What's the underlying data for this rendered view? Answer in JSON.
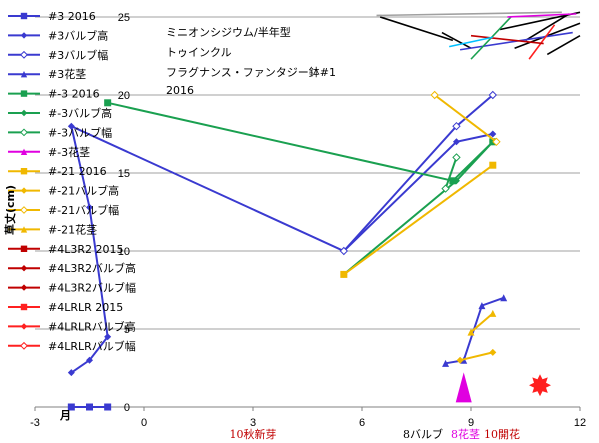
{
  "chart_data": {
    "type": "scatter",
    "title": "ミニオンシジウム/半年型",
    "subtitle_lines": [
      "トゥインクル",
      "フラグナンス・ファンタジー鉢#1",
      "2016"
    ],
    "xlabel": "月",
    "ylabel": "草丈(cm)",
    "xlim": [
      -3,
      12
    ],
    "ylim": [
      0,
      25
    ],
    "xticks": [
      -3,
      0,
      3,
      6,
      9,
      12
    ],
    "xtick_labels": [
      "-3",
      "0",
      "3",
      "6",
      "9",
      "12"
    ],
    "yticks": [
      0,
      5,
      10,
      15,
      20,
      25
    ],
    "ytick_labels": [
      "0",
      "5",
      "10",
      "15",
      "20",
      "25"
    ],
    "grid": "horizontal",
    "legend_position": "left",
    "annotations": [
      {
        "text": "10秋新芽",
        "x": 3,
        "color": "#c00000"
      },
      {
        "text": "8バルブ",
        "x": 8.6,
        "color": "#000000"
      },
      {
        "text": "8花茎",
        "x": 9.0,
        "color": "#e000e0"
      },
      {
        "text": "10開花",
        "x": 9.6,
        "color": "#c00000"
      }
    ],
    "series": [
      {
        "name": "#3 2016",
        "color": "#3a3ad0",
        "marker": "square",
        "x": [
          -2,
          -1.5,
          -1
        ],
        "y": [
          0,
          0,
          0
        ]
      },
      {
        "name": "#3バルブ高",
        "color": "#3a3ad0",
        "marker": "diamond",
        "x": [
          -2,
          -1.5,
          -1,
          -1.5,
          -2,
          5.5,
          8.6,
          9.6
        ],
        "y": [
          2.2,
          3.0,
          4.5,
          12.8,
          18.0,
          10.0,
          17.0,
          17.5
        ]
      },
      {
        "name": "#3バルブ幅",
        "color": "#3a3ad0",
        "marker": "diamond-open",
        "x": [
          5.5,
          8.6,
          9.6
        ],
        "y": [
          10.0,
          18.0,
          20.0
        ]
      },
      {
        "name": "#3花茎",
        "color": "#3a3ad0",
        "marker": "triangle",
        "x": [
          8.3,
          8.8,
          9.3,
          9.9
        ],
        "y": [
          2.8,
          3.0,
          6.5,
          7.0
        ]
      },
      {
        "name": "#-3 2016",
        "color": "#1aa050",
        "marker": "square",
        "x": [
          -1,
          8.5,
          9.6
        ],
        "y": [
          19.5,
          14.5,
          17.0
        ]
      },
      {
        "name": "#-3バルブ高",
        "color": "#1aa050",
        "marker": "diamond",
        "x": [
          5.5,
          8.6,
          9.6
        ],
        "y": [
          8.5,
          14.5,
          17.0
        ]
      },
      {
        "name": "#-3バルブ幅",
        "color": "#1aa050",
        "marker": "diamond-open",
        "x": [
          8.3,
          8.6
        ],
        "y": [
          14.0,
          16.0
        ]
      },
      {
        "name": "#-3花茎",
        "color": "#e000e0",
        "marker": "triangle",
        "x": [
          8.8
        ],
        "y": [
          0.6
        ]
      },
      {
        "name": "#-21 2016",
        "color": "#f0b800",
        "marker": "square",
        "x": [
          5.5,
          9.6
        ],
        "y": [
          8.5,
          15.5
        ]
      },
      {
        "name": "#-21バルブ高",
        "color": "#f0b800",
        "marker": "diamond",
        "x": [
          8.7,
          9.6
        ],
        "y": [
          3.0,
          3.5
        ]
      },
      {
        "name": "#-21バルブ幅",
        "color": "#f0b800",
        "marker": "diamond-open",
        "x": [
          8.0,
          9.7
        ],
        "y": [
          20.0,
          17.0
        ]
      },
      {
        "name": "#-21花茎",
        "color": "#f0b800",
        "marker": "triangle",
        "x": [
          9.0,
          9.6
        ],
        "y": [
          4.8,
          6.0
        ]
      },
      {
        "name": "#4L3R2 2015",
        "color": "#c00000",
        "marker": "square",
        "x": [],
        "y": []
      },
      {
        "name": "#4L3R2バルブ高",
        "color": "#c00000",
        "marker": "diamond",
        "x": [],
        "y": []
      },
      {
        "name": "#4L3R2バルブ幅",
        "color": "#c00000",
        "marker": "diamond",
        "x": [],
        "y": []
      },
      {
        "name": "#4LRLR 2015",
        "color": "#ff2020",
        "marker": "square",
        "x": [],
        "y": []
      },
      {
        "name": "#4LRLRバルブ高",
        "color": "#ff2020",
        "marker": "diamond",
        "x": [],
        "y": []
      },
      {
        "name": "#4LRLRバルブ幅",
        "color": "#ff2020",
        "marker": "diamond-open",
        "x": [],
        "y": []
      }
    ],
    "extra_marks": {
      "flower_star": {
        "x": 10.9,
        "y": 1.4,
        "color": "#ff2020"
      },
      "magenta_spike": {
        "x": 8.8,
        "y": 0.3,
        "color": "#e000e0"
      },
      "top_scribbles": [
        {
          "color": "#000000",
          "pts": [
            [
              9.8,
              24.2
            ],
            [
              12,
              25.3
            ]
          ]
        },
        {
          "color": "#000000",
          "pts": [
            [
              10.2,
              23.0
            ],
            [
              12,
              24.6
            ]
          ]
        },
        {
          "color": "#000000",
          "pts": [
            [
              10.5,
              23.5
            ],
            [
              11.7,
              25.2
            ]
          ]
        },
        {
          "color": "#000000",
          "pts": [
            [
              11.1,
              22.6
            ],
            [
              12,
              23.8
            ]
          ]
        },
        {
          "color": "#000000",
          "pts": [
            [
              8.2,
              24.0
            ],
            [
              9.0,
              23.0
            ]
          ]
        },
        {
          "color": "#3a3ad0",
          "pts": [
            [
              8.7,
              22.9
            ],
            [
              11.8,
              24.0
            ]
          ]
        },
        {
          "color": "#1aa050",
          "pts": [
            [
              9.0,
              22.3
            ],
            [
              10.1,
              25.0
            ]
          ]
        },
        {
          "color": "#ff2020",
          "pts": [
            [
              10.6,
              22.3
            ],
            [
              11.3,
              24.5
            ]
          ]
        },
        {
          "color": "#e000e0",
          "pts": [
            [
              10.0,
              25.0
            ],
            [
              11.9,
              25.2
            ]
          ]
        },
        {
          "color": "#a0a0a0",
          "pts": [
            [
              6.4,
              25.1
            ],
            [
              11.5,
              25.3
            ]
          ]
        },
        {
          "color": "#c00000",
          "pts": [
            [
              9.0,
              23.8
            ],
            [
              11.0,
              23.3
            ]
          ]
        },
        {
          "color": "#000000",
          "pts": [
            [
              6.5,
              25.0
            ],
            [
              8.5,
              23.5
            ]
          ]
        },
        {
          "color": "#00c0ff",
          "pts": [
            [
              8.4,
              23.1
            ],
            [
              9.6,
              23.7
            ]
          ]
        }
      ]
    }
  }
}
